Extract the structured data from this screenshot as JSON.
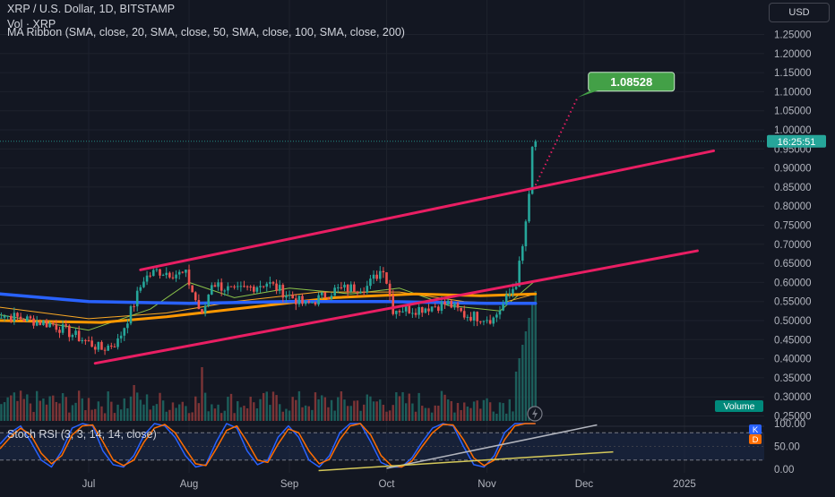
{
  "header": {
    "title": "XRP / U.S. Dollar, 1D, BITSTAMP",
    "volume_label": "Vol · XRP",
    "ma_label": "MA Ribbon (SMA, close, 20, SMA, close, 50, SMA, close, 100, SMA, close, 200)"
  },
  "currency_button": "USD",
  "colors": {
    "background": "#131722",
    "up": "#26a69a",
    "down": "#ef5350",
    "channel": "#e91e63",
    "ma20": "#8bc34a",
    "ma50": "#f9a825",
    "ma100": "#ff9800",
    "ma200": "#2962ff",
    "target_badge": "#43a047",
    "rsi_k": "#2962ff",
    "rsi_d": "#ff6d00"
  },
  "chart_data": [
    {
      "type": "candlestick",
      "title": "XRP / U.S. Dollar, 1D, BITSTAMP",
      "y_axis": {
        "labels": [
          "1.25000",
          "1.20000",
          "1.15000",
          "1.10000",
          "1.05000",
          "1.00000",
          "0.95000",
          "0.90000",
          "0.85000",
          "0.80000",
          "0.75000",
          "0.70000",
          "0.65000",
          "0.60000",
          "0.55000",
          "0.50000",
          "0.45000",
          "0.40000",
          "0.35000",
          "0.30000",
          "0.25000"
        ],
        "ylim": [
          0.245,
          1.27
        ]
      },
      "x_axis": {
        "labels": [
          "Jul",
          "Aug",
          "Sep",
          "Oct",
          "Nov",
          "Dec",
          "2025"
        ]
      },
      "current_price_time": "16:25:51",
      "current_price": 0.97,
      "target_label": "1.08528",
      "target_value": 1.08528,
      "volume_label": "Volume",
      "anchors": [
        {
          "date": "2024-06-01",
          "close": 0.52
        },
        {
          "date": "2024-06-20",
          "close": 0.49
        },
        {
          "date": "2024-07-05",
          "close": 0.425
        },
        {
          "date": "2024-07-10",
          "close": 0.445
        },
        {
          "date": "2024-07-15",
          "close": 0.545
        },
        {
          "date": "2024-07-18",
          "close": 0.61
        },
        {
          "date": "2024-07-22",
          "close": 0.63
        },
        {
          "date": "2024-07-31",
          "close": 0.62
        },
        {
          "date": "2024-08-05",
          "close": 0.51
        },
        {
          "date": "2024-08-08",
          "close": 0.6
        },
        {
          "date": "2024-08-15",
          "close": 0.575
        },
        {
          "date": "2024-08-25",
          "close": 0.6
        },
        {
          "date": "2024-09-06",
          "close": 0.54
        },
        {
          "date": "2024-09-15",
          "close": 0.58
        },
        {
          "date": "2024-09-25",
          "close": 0.59
        },
        {
          "date": "2024-09-30",
          "close": 0.64
        },
        {
          "date": "2024-10-03",
          "close": 0.53
        },
        {
          "date": "2024-10-10",
          "close": 0.53
        },
        {
          "date": "2024-10-20",
          "close": 0.545
        },
        {
          "date": "2024-10-25",
          "close": 0.515
        },
        {
          "date": "2024-11-03",
          "close": 0.505
        },
        {
          "date": "2024-11-07",
          "close": 0.555
        },
        {
          "date": "2024-11-10",
          "close": 0.6
        },
        {
          "date": "2024-11-12",
          "close": 0.69
        },
        {
          "date": "2024-11-13",
          "close": 0.76
        },
        {
          "date": "2024-11-14",
          "close": 0.82
        },
        {
          "date": "2024-11-15",
          "close": 0.95
        },
        {
          "date": "2024-11-16",
          "close": 0.97
        }
      ],
      "channel_lines": [
        {
          "name": "channel-upper",
          "from": {
            "date": "2024-07-17",
            "price": 0.633
          },
          "to": {
            "date": "2025-01-10",
            "price": 0.945
          }
        },
        {
          "name": "channel-lower",
          "from": {
            "date": "2024-07-03",
            "price": 0.388
          },
          "to": {
            "date": "2025-01-05",
            "price": 0.683
          }
        }
      ],
      "projection": {
        "from": {
          "date": "2024-11-16",
          "price": 0.855
        },
        "to": {
          "date": "2024-11-29",
          "price": 1.085
        }
      },
      "moving_averages": [
        {
          "name": "MA 20",
          "points": [
            [
              "2024-06-01",
              0.515
            ],
            [
              "2024-07-01",
              0.475
            ],
            [
              "2024-07-20",
              0.53
            ],
            [
              "2024-08-01",
              0.6
            ],
            [
              "2024-08-15",
              0.56
            ],
            [
              "2024-09-01",
              0.585
            ],
            [
              "2024-09-20",
              0.57
            ],
            [
              "2024-10-05",
              0.585
            ],
            [
              "2024-10-20",
              0.54
            ],
            [
              "2024-11-05",
              0.525
            ],
            [
              "2024-11-16",
              0.605
            ]
          ]
        },
        {
          "name": "MA 50",
          "points": [
            [
              "2024-06-01",
              0.535
            ],
            [
              "2024-07-01",
              0.505
            ],
            [
              "2024-07-25",
              0.52
            ],
            [
              "2024-08-15",
              0.55
            ],
            [
              "2024-09-10",
              0.575
            ],
            [
              "2024-10-05",
              0.575
            ],
            [
              "2024-10-25",
              0.55
            ],
            [
              "2024-11-05",
              0.545
            ],
            [
              "2024-11-16",
              0.57
            ]
          ]
        },
        {
          "name": "MA 100",
          "points": [
            [
              "2024-06-01",
              0.5
            ],
            [
              "2024-07-05",
              0.495
            ],
            [
              "2024-07-25",
              0.51
            ],
            [
              "2024-08-20",
              0.535
            ],
            [
              "2024-09-15",
              0.56
            ],
            [
              "2024-10-10",
              0.57
            ],
            [
              "2024-10-30",
              0.565
            ],
            [
              "2024-11-16",
              0.57
            ]
          ]
        },
        {
          "name": "MA 200",
          "points": [
            [
              "2024-06-01",
              0.57
            ],
            [
              "2024-07-01",
              0.55
            ],
            [
              "2024-08-01",
              0.545
            ],
            [
              "2024-09-01",
              0.55
            ],
            [
              "2024-10-01",
              0.55
            ],
            [
              "2024-11-01",
              0.545
            ],
            [
              "2024-11-16",
              0.545
            ]
          ]
        }
      ]
    },
    {
      "type": "line",
      "title": "Stoch RSI (3, 3, 14, 14, close)",
      "y_axis": {
        "labels": [
          "100.00",
          "50.00",
          "0.00"
        ],
        "ylim": [
          -10,
          110
        ],
        "bands": [
          80,
          20
        ]
      },
      "series": [
        {
          "name": "K",
          "values": [
            55,
            80,
            95,
            60,
            20,
            5,
            40,
            90,
            100,
            95,
            40,
            10,
            5,
            30,
            75,
            100,
            95,
            70,
            30,
            5,
            10,
            60,
            100,
            90,
            40,
            10,
            20,
            70,
            95,
            70,
            20,
            5,
            30,
            80,
            100,
            100,
            60,
            15,
            5,
            5,
            25,
            60,
            90,
            100,
            95,
            50,
            10,
            5,
            30,
            80,
            100,
            100,
            100
          ]
        },
        {
          "name": "D",
          "values": [
            45,
            70,
            90,
            75,
            35,
            12,
            30,
            75,
            95,
            97,
            60,
            20,
            8,
            20,
            60,
            90,
            98,
            80,
            45,
            12,
            8,
            45,
            85,
            95,
            60,
            20,
            15,
            55,
            88,
            80,
            40,
            12,
            22,
            65,
            95,
            100,
            75,
            30,
            8,
            5,
            18,
            50,
            80,
            98,
            97,
            65,
            25,
            8,
            20,
            65,
            95,
            100,
            100
          ]
        }
      ],
      "trendlines": [
        {
          "name": "rsi-trend-gray",
          "from": {
            "date": "2024-10-01",
            "value": 2
          },
          "to": {
            "date": "2024-12-05",
            "value": 97
          }
        },
        {
          "name": "rsi-trend-yellow",
          "from": {
            "date": "2024-09-10",
            "value": -3
          },
          "to": {
            "date": "2024-12-10",
            "value": 38
          }
        }
      ],
      "key_badges": [
        "K",
        "D"
      ]
    }
  ]
}
